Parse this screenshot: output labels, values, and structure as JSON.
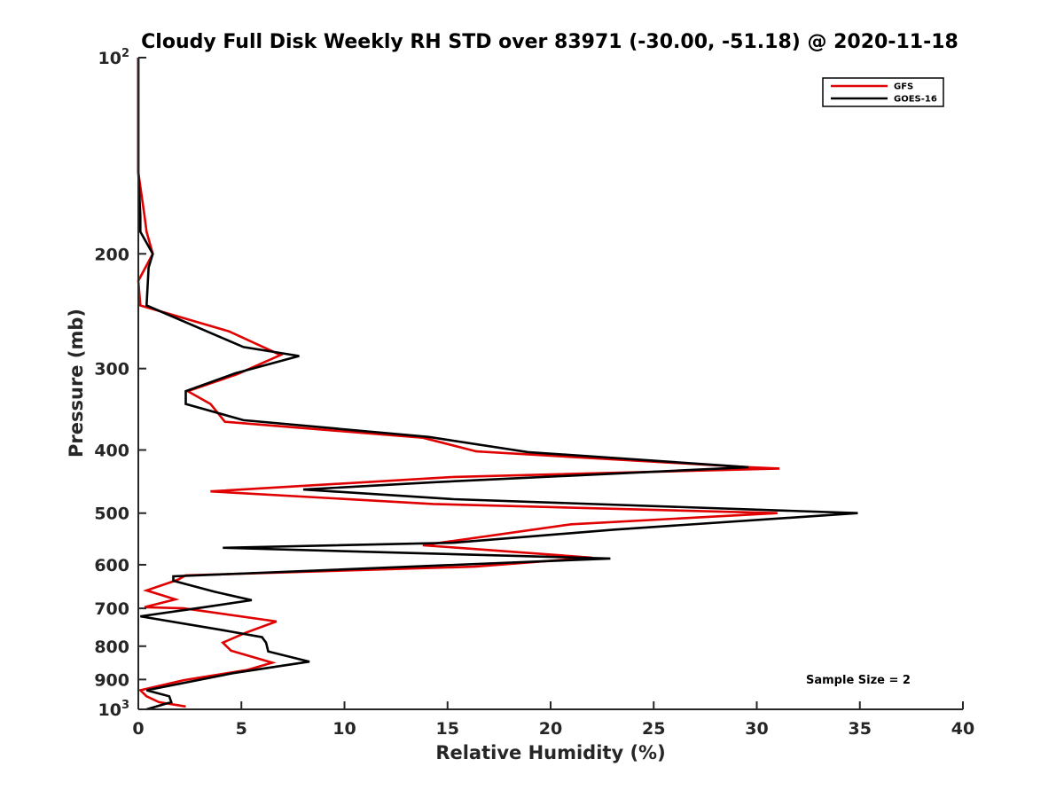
{
  "chart_data": {
    "type": "line",
    "title": "Cloudy Full Disk Weekly RH STD over 83971 (-30.00, -51.18) @ 2020-11-18",
    "xlabel": "Relative Humidity (%)",
    "ylabel": "Pressure (mb)",
    "xlim": [
      0,
      40
    ],
    "ylim": [
      100,
      1000
    ],
    "y_scale": "log",
    "y_reversed": true,
    "grid": false,
    "legend_position": "top-right",
    "x_ticks": [
      "0",
      "5",
      "10",
      "15",
      "20",
      "25",
      "30",
      "35",
      "40"
    ],
    "y_ticks": [
      {
        "value": 100,
        "base": "10",
        "exp": "2"
      },
      {
        "value": 200,
        "label": "200"
      },
      {
        "value": 300,
        "label": "300"
      },
      {
        "value": 400,
        "label": "400"
      },
      {
        "value": 500,
        "label": "500"
      },
      {
        "value": 600,
        "label": "600"
      },
      {
        "value": 700,
        "label": "700"
      },
      {
        "value": 800,
        "label": "800"
      },
      {
        "value": 900,
        "label": "900"
      },
      {
        "value": 1000,
        "base": "10",
        "exp": "3"
      }
    ],
    "annotation": "Sample Size = 2",
    "series": [
      {
        "name": "GFS",
        "color": "#e00000",
        "points": [
          [
            0.0,
            100
          ],
          [
            0.0,
            150
          ],
          [
            0.3,
            175
          ],
          [
            0.4,
            185
          ],
          [
            0.7,
            200
          ],
          [
            0.0,
            220
          ],
          [
            0.1,
            240
          ],
          [
            4.4,
            263
          ],
          [
            6.9,
            286
          ],
          [
            4.8,
            306
          ],
          [
            2.4,
            325
          ],
          [
            3.5,
            340
          ],
          [
            4.2,
            362
          ],
          [
            13.8,
            383
          ],
          [
            16.4,
            402
          ],
          [
            29.6,
            425
          ],
          [
            31.1,
            427
          ],
          [
            15.3,
            440
          ],
          [
            3.5,
            463
          ],
          [
            14.3,
            484
          ],
          [
            31.0,
            500
          ],
          [
            21.0,
            520
          ],
          [
            13.8,
            560
          ],
          [
            22.0,
            585
          ],
          [
            16.3,
            604
          ],
          [
            2.3,
            623
          ],
          [
            1.9,
            633
          ],
          [
            0.4,
            657
          ],
          [
            1.8,
            678
          ],
          [
            0.3,
            697
          ],
          [
            2.2,
            700
          ],
          [
            6.7,
            733
          ],
          [
            5.2,
            763
          ],
          [
            4.1,
            790
          ],
          [
            4.5,
            813
          ],
          [
            6.5,
            848
          ],
          [
            5.3,
            870
          ],
          [
            2.2,
            902
          ],
          [
            0.1,
            935
          ],
          [
            0.4,
            955
          ],
          [
            1.0,
            975
          ],
          [
            2.3,
            990
          ]
        ]
      },
      {
        "name": "GOES-16",
        "color": "#000000",
        "points": [
          [
            0.0,
            100
          ],
          [
            0.0,
            150
          ],
          [
            0.1,
            175
          ],
          [
            0.1,
            185
          ],
          [
            0.7,
            200
          ],
          [
            0.5,
            210
          ],
          [
            0.4,
            240
          ],
          [
            5.1,
            278
          ],
          [
            7.8,
            287
          ],
          [
            4.7,
            305
          ],
          [
            2.3,
            325
          ],
          [
            2.3,
            340
          ],
          [
            5.1,
            360
          ],
          [
            14.1,
            382
          ],
          [
            18.9,
            403
          ],
          [
            29.6,
            425
          ],
          [
            14.5,
            448
          ],
          [
            8.0,
            460
          ],
          [
            15.3,
            476
          ],
          [
            34.9,
            500
          ],
          [
            23.1,
            530
          ],
          [
            15.3,
            555
          ],
          [
            4.1,
            565
          ],
          [
            22.9,
            587
          ],
          [
            1.7,
            625
          ],
          [
            1.7,
            635
          ],
          [
            3.7,
            660
          ],
          [
            5.5,
            680
          ],
          [
            3.2,
            697
          ],
          [
            0.1,
            720
          ],
          [
            4.0,
            755
          ],
          [
            6.0,
            775
          ],
          [
            6.2,
            790
          ],
          [
            6.3,
            815
          ],
          [
            8.3,
            845
          ],
          [
            4.6,
            880
          ],
          [
            0.4,
            935
          ],
          [
            1.5,
            955
          ],
          [
            1.6,
            975
          ],
          [
            0.4,
            1000
          ]
        ]
      }
    ]
  }
}
